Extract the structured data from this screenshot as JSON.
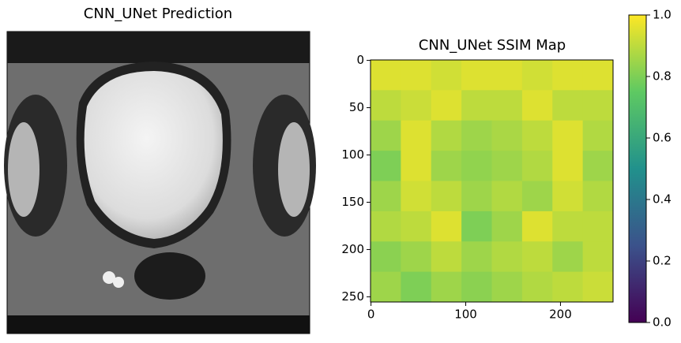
{
  "chart_data": [
    {
      "type": "image",
      "title": "CNN_UNet Prediction"
    },
    {
      "type": "heatmap",
      "title": "CNN_UNet SSIM Map",
      "values": [
        [
          0.95,
          0.95,
          0.93,
          0.95,
          0.95,
          0.93,
          0.95,
          0.95
        ],
        [
          0.9,
          0.92,
          0.95,
          0.9,
          0.9,
          0.95,
          0.9,
          0.9
        ],
        [
          0.85,
          0.95,
          0.88,
          0.85,
          0.87,
          0.9,
          0.95,
          0.88
        ],
        [
          0.8,
          0.95,
          0.85,
          0.83,
          0.85,
          0.88,
          0.95,
          0.85
        ],
        [
          0.85,
          0.93,
          0.9,
          0.85,
          0.88,
          0.85,
          0.93,
          0.88
        ],
        [
          0.88,
          0.9,
          0.95,
          0.8,
          0.85,
          0.95,
          0.9,
          0.9
        ],
        [
          0.82,
          0.85,
          0.9,
          0.85,
          0.88,
          0.9,
          0.85,
          0.9
        ],
        [
          0.85,
          0.8,
          0.85,
          0.82,
          0.85,
          0.88,
          0.9,
          0.92
        ]
      ],
      "xlim": [
        -0.5,
        255.5
      ],
      "ylim": [
        255.5,
        -0.5
      ],
      "xticks": [
        0,
        100,
        200
      ],
      "yticks": [
        0,
        50,
        100,
        150,
        200,
        250
      ],
      "colormap": [
        "#440154",
        "#3b528b",
        "#21918c",
        "#5ec962",
        "#fde725"
      ],
      "clim": [
        0,
        1
      ],
      "cticks": [
        {
          "value": 0,
          "label": "0.0"
        },
        {
          "value": 0.2,
          "label": "0.2"
        },
        {
          "value": 0.4,
          "label": "0.4"
        },
        {
          "value": 0.6,
          "label": "0.6"
        },
        {
          "value": 0.8,
          "label": "0.8"
        },
        {
          "value": 1,
          "label": "1.0"
        }
      ]
    }
  ]
}
